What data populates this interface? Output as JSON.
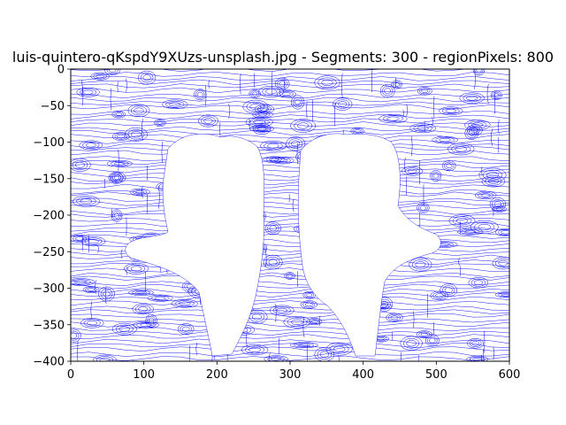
{
  "chart_data": {
    "type": "line",
    "title": "luis-quintero-qKspdY9XUzs-unsplash.jpg - Segments: 300 - regionPixels: 800",
    "xlabel": "",
    "ylabel": "",
    "xlim": [
      0,
      600
    ],
    "ylim": [
      -400,
      0
    ],
    "x_ticks": [
      0,
      100,
      200,
      300,
      400,
      500,
      600
    ],
    "y_ticks": [
      0,
      -50,
      -100,
      -150,
      -200,
      -250,
      -300,
      -350,
      -400
    ],
    "x_tick_labels": [
      "0",
      "100",
      "200",
      "300",
      "400",
      "500",
      "600"
    ],
    "y_tick_labels": [
      "0",
      "−50",
      "−100",
      "−150",
      "−200",
      "−250",
      "−300",
      "−350",
      "−400"
    ],
    "line_color": "#0000ff",
    "grid": false,
    "legend": "none",
    "description_series": "Dense blue streamline/contour paths of image segmentation over a 600x400 region; two hand silhouettes left blank in the center."
  }
}
